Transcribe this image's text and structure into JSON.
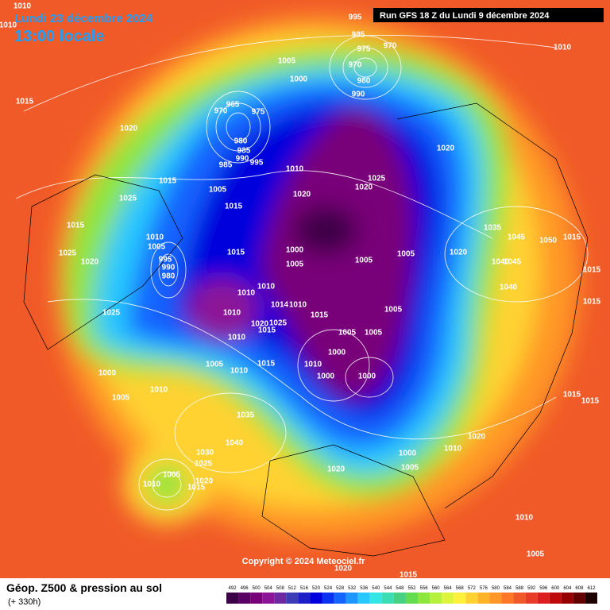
{
  "header": {
    "date": "Lundi 23 décembre 2024",
    "time": "13:00 locale",
    "run": "Run GFS 18 Z du Lundi 9 décembre 2024"
  },
  "footer": {
    "title": "Géop. Z500 & pression au sol",
    "lead": "(+ 330h)",
    "copyright": "Copyright © 2024 Meteociel.fr"
  },
  "legend": {
    "values": [
      492,
      496,
      500,
      504,
      508,
      512,
      516,
      520,
      524,
      528,
      532,
      536,
      540,
      544,
      548,
      552,
      556,
      560,
      564,
      568,
      572,
      576,
      580,
      584,
      588,
      592,
      596,
      600,
      604,
      608,
      612
    ],
    "colors": [
      "#3c0046",
      "#5a0064",
      "#780078",
      "#8c1496",
      "#6e28a0",
      "#3c3cb4",
      "#1e1ec8",
      "#0000dc",
      "#0a32f0",
      "#1464ff",
      "#1e96ff",
      "#28c8ff",
      "#32e6e6",
      "#3cdcb4",
      "#46d282",
      "#64dc50",
      "#8ce63c",
      "#b4f03c",
      "#dcf53c",
      "#fff03c",
      "#ffd232",
      "#ffb428",
      "#ff9628",
      "#ff7828",
      "#f05a28",
      "#e63c28",
      "#dc1e1e",
      "#be0a0a",
      "#960000",
      "#640000",
      "#1e0000"
    ]
  },
  "isobar_labels": [
    1010,
    1010,
    995,
    985,
    975,
    970,
    970,
    980,
    990,
    1005,
    1000,
    1010,
    1015,
    965,
    970,
    975,
    980,
    985,
    990,
    995,
    985,
    1020,
    1020,
    1010,
    1015,
    1025,
    1020,
    1005,
    1020,
    1025,
    1015,
    1015,
    1035,
    1045,
    1050,
    1015,
    1010,
    1005,
    1025,
    1000,
    1005,
    1005,
    1020,
    1015,
    1020,
    1040,
    1045,
    995,
    990,
    980,
    1005,
    1010,
    1010,
    1040,
    1015,
    1015,
    1025,
    1014,
    1010,
    1005,
    1015,
    1010,
    1020,
    1025,
    1015,
    1005,
    1005,
    1010,
    1000,
    1010,
    1005,
    1010,
    1015,
    1000,
    1000,
    1000,
    1005,
    1010,
    1015,
    1015,
    1035,
    1040,
    1020,
    1010,
    1030,
    1025,
    1000,
    1020,
    1005,
    1005,
    1010,
    1020,
    1015,
    1010,
    1005,
    1020,
    1015
  ]
}
